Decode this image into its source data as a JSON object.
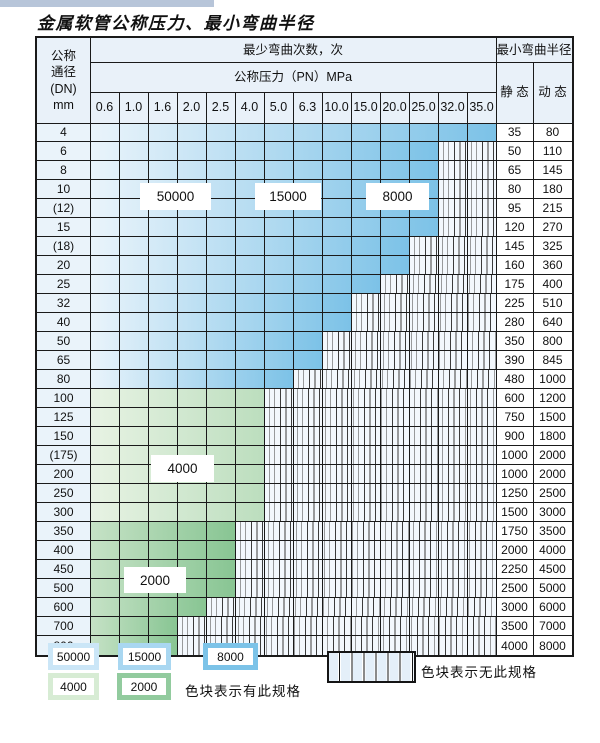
{
  "page": {
    "title": "金属软管公称压力、最小弯曲半径"
  },
  "table": {
    "dn_header_lines": [
      "公称",
      "通径",
      "(DN)",
      "mm"
    ],
    "bend_count_header": "最少弯曲次数，次",
    "pn_header": "公称压力（PN）MPa",
    "radius_header": "最小弯曲半径",
    "static_header": "静 态",
    "dynamic_header": "动 态",
    "pressure_columns": [
      "0.6",
      "1.0",
      "1.6",
      "2.0",
      "2.5",
      "4.0",
      "5.0",
      "6.3",
      "10.0",
      "15.0",
      "20.0",
      "25.0",
      "32.0",
      "35.0"
    ],
    "rows": [
      {
        "dn": "4",
        "colored_cols": 14,
        "group": "blue",
        "static": "35",
        "dynamic": "80"
      },
      {
        "dn": "6",
        "colored_cols": 12,
        "group": "blue",
        "static": "50",
        "dynamic": "110"
      },
      {
        "dn": "8",
        "colored_cols": 12,
        "group": "blue",
        "static": "65",
        "dynamic": "145"
      },
      {
        "dn": "10",
        "colored_cols": 12,
        "group": "blue",
        "static": "80",
        "dynamic": "180"
      },
      {
        "dn": "(12)",
        "colored_cols": 12,
        "group": "blue",
        "static": "95",
        "dynamic": "215"
      },
      {
        "dn": "15",
        "colored_cols": 12,
        "group": "blue",
        "static": "120",
        "dynamic": "270"
      },
      {
        "dn": "(18)",
        "colored_cols": 11,
        "group": "blue",
        "static": "145",
        "dynamic": "325"
      },
      {
        "dn": "20",
        "colored_cols": 11,
        "group": "blue",
        "static": "160",
        "dynamic": "360"
      },
      {
        "dn": "25",
        "colored_cols": 10,
        "group": "blue",
        "static": "175",
        "dynamic": "400"
      },
      {
        "dn": "32",
        "colored_cols": 9,
        "group": "blue",
        "static": "225",
        "dynamic": "510"
      },
      {
        "dn": "40",
        "colored_cols": 9,
        "group": "blue",
        "static": "280",
        "dynamic": "640"
      },
      {
        "dn": "50",
        "colored_cols": 8,
        "group": "blue",
        "static": "350",
        "dynamic": "800"
      },
      {
        "dn": "65",
        "colored_cols": 8,
        "group": "blue",
        "static": "390",
        "dynamic": "845"
      },
      {
        "dn": "80",
        "colored_cols": 7,
        "group": "blue",
        "static": "480",
        "dynamic": "1000"
      },
      {
        "dn": "100",
        "colored_cols": 6,
        "group": "green_light",
        "static": "600",
        "dynamic": "1200"
      },
      {
        "dn": "125",
        "colored_cols": 6,
        "group": "green_light",
        "static": "750",
        "dynamic": "1500"
      },
      {
        "dn": "150",
        "colored_cols": 6,
        "group": "green_light",
        "static": "900",
        "dynamic": "1800"
      },
      {
        "dn": "(175)",
        "colored_cols": 6,
        "group": "green_light",
        "static": "1000",
        "dynamic": "2000"
      },
      {
        "dn": "200",
        "colored_cols": 6,
        "group": "green_light",
        "static": "1000",
        "dynamic": "2000"
      },
      {
        "dn": "250",
        "colored_cols": 6,
        "group": "green_light",
        "static": "1250",
        "dynamic": "2500"
      },
      {
        "dn": "300",
        "colored_cols": 6,
        "group": "green_light",
        "static": "1500",
        "dynamic": "3000"
      },
      {
        "dn": "350",
        "colored_cols": 5,
        "group": "green_dark",
        "static": "1750",
        "dynamic": "3500"
      },
      {
        "dn": "400",
        "colored_cols": 5,
        "group": "green_dark",
        "static": "2000",
        "dynamic": "4000"
      },
      {
        "dn": "450",
        "colored_cols": 5,
        "group": "green_dark",
        "static": "2250",
        "dynamic": "4500"
      },
      {
        "dn": "500",
        "colored_cols": 5,
        "group": "green_dark",
        "static": "2500",
        "dynamic": "5000"
      },
      {
        "dn": "600",
        "colored_cols": 4,
        "group": "green_dark",
        "static": "3000",
        "dynamic": "6000"
      },
      {
        "dn": "700",
        "colored_cols": 3,
        "group": "green_dark",
        "static": "3500",
        "dynamic": "7000"
      },
      {
        "dn": "800",
        "colored_cols": 3,
        "group": "green_dark",
        "static": "4000",
        "dynamic": "8000"
      }
    ]
  },
  "region_labels": {
    "bend_50000": "50000",
    "bend_15000": "15000",
    "bend_8000": "8000",
    "bend_4000": "4000",
    "bend_2000": "2000"
  },
  "legend": {
    "items": [
      {
        "label": "50000",
        "color": "#cbe6f7"
      },
      {
        "label": "15000",
        "color": "#a9d7f1"
      },
      {
        "label": "8000",
        "color": "#7cc3e8"
      },
      {
        "label": "4000",
        "color": "#d7ecd4"
      },
      {
        "label": "2000",
        "color": "#92cb9e"
      }
    ],
    "has_spec_note": "色块表示有此规格",
    "no_spec_note": "色块表示无此规格"
  },
  "colors": {
    "grid_line": "#1a1a1a",
    "header_bg": "#e9f1f9",
    "blue_region_end": "#7cc2e7",
    "green_light_region_end": "#bcdebe",
    "green_dark_region_end": "#88c593",
    "striped_bg": "#f3f8fd",
    "top_strip": "#b7c5d9"
  }
}
